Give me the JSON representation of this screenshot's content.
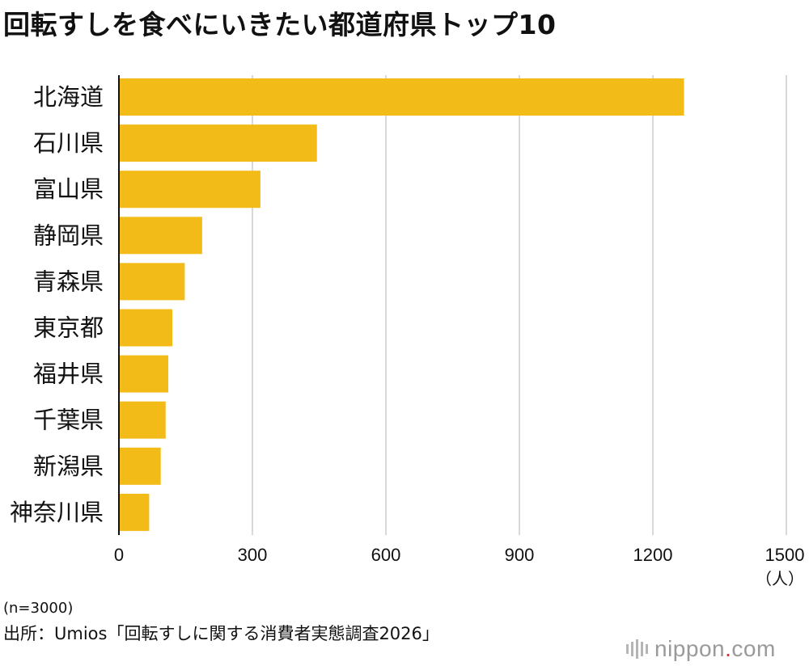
{
  "title": "回転すしを食べにいきたい都道府県トップ10",
  "note": "(n=3000)",
  "source": "出所：Umios「回転すしに関する消費者実態調査2026」",
  "logo": {
    "name": "nippon",
    "dot": ".",
    "tld": "com"
  },
  "colors": {
    "bar": "#f2bb18",
    "grid": "#cccccc",
    "axis": "#111111"
  },
  "chart_data": {
    "type": "bar",
    "orientation": "horizontal",
    "categories": [
      "北海道",
      "石川県",
      "富山県",
      "静岡県",
      "青森県",
      "東京都",
      "福井県",
      "千葉県",
      "新潟県",
      "神奈川県"
    ],
    "values": [
      1270,
      445,
      318,
      187,
      148,
      120,
      111,
      105,
      94,
      68
    ],
    "xlim": [
      0,
      1500
    ],
    "xticks": [
      0,
      300,
      600,
      900,
      1200,
      1500
    ],
    "xlabel": "（人）",
    "grid": true
  }
}
